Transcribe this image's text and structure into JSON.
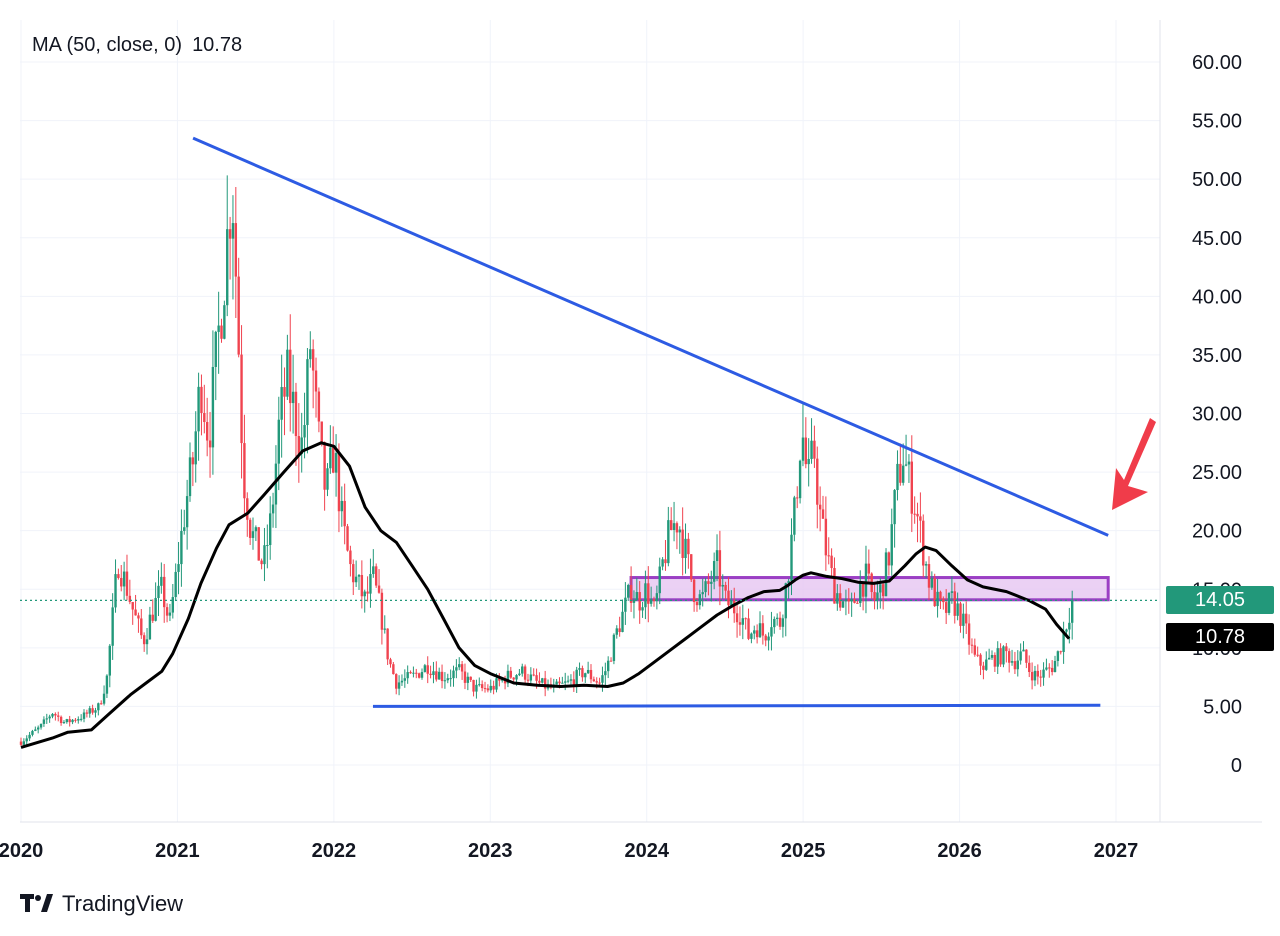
{
  "indicator": {
    "name": "MA (50, close, 0)",
    "value": "10.78"
  },
  "brand": {
    "name": "TradingView",
    "logo_icon": "tradingview-logo-icon"
  },
  "price_labels": {
    "last_close": {
      "text": "14.05",
      "value": 14.05,
      "color": "#22987a"
    },
    "ma_value": {
      "text": "10.78",
      "value": 10.78,
      "color": "#000000"
    }
  },
  "chart_data": {
    "type": "candlestick",
    "y_axis": {
      "position": "right",
      "range": [
        -4.5,
        64
      ],
      "ticks": [
        {
          "value": 60,
          "label": "60.00"
        },
        {
          "value": 55,
          "label": "55.00"
        },
        {
          "value": 50,
          "label": "50.00"
        },
        {
          "value": 45,
          "label": "45.00"
        },
        {
          "value": 40,
          "label": "40.00"
        },
        {
          "value": 35,
          "label": "35.00"
        },
        {
          "value": 30,
          "label": "30.00"
        },
        {
          "value": 25,
          "label": "25.00"
        },
        {
          "value": 20,
          "label": "20.00"
        },
        {
          "value": 15,
          "label": "15.00"
        },
        {
          "value": 10,
          "label": "10.00"
        },
        {
          "value": 5,
          "label": "5.00"
        },
        {
          "value": 0,
          "label": "0"
        }
      ]
    },
    "x_axis": {
      "range": [
        2020.0,
        2027.3
      ],
      "ticks": [
        {
          "value": 2020,
          "label": "2020"
        },
        {
          "value": 2021,
          "label": "2021"
        },
        {
          "value": 2022,
          "label": "2022"
        },
        {
          "value": 2023,
          "label": "2023"
        },
        {
          "value": 2024,
          "label": "2024"
        },
        {
          "value": 2025,
          "label": "2025"
        },
        {
          "value": 2026,
          "label": "2026"
        },
        {
          "value": 2027,
          "label": "2027"
        }
      ]
    },
    "grid": true,
    "colors": {
      "up": "#22987a",
      "down": "#f0434f",
      "ma": "#000000",
      "trendline": "#2d5be3",
      "zone": "#9b3fc4",
      "arrow": "#f03c4a"
    },
    "price_path": [
      [
        2020.0,
        2.0
      ],
      [
        2020.12,
        3.2
      ],
      [
        2020.2,
        4.5
      ],
      [
        2020.28,
        3.6
      ],
      [
        2020.4,
        4.2
      ],
      [
        2020.5,
        5.0
      ],
      [
        2020.55,
        7.5
      ],
      [
        2020.62,
        17.5
      ],
      [
        2020.68,
        15.0
      ],
      [
        2020.72,
        13.0
      ],
      [
        2020.78,
        10.5
      ],
      [
        2020.85,
        13.5
      ],
      [
        2020.9,
        15.0
      ],
      [
        2020.95,
        12.0
      ],
      [
        2021.0,
        17.0
      ],
      [
        2021.05,
        22.0
      ],
      [
        2021.1,
        26.0
      ],
      [
        2021.15,
        33.0
      ],
      [
        2021.2,
        28.0
      ],
      [
        2021.25,
        35.0
      ],
      [
        2021.3,
        42.0
      ],
      [
        2021.35,
        50.0
      ],
      [
        2021.38,
        40.0
      ],
      [
        2021.42,
        25.0
      ],
      [
        2021.47,
        20.0
      ],
      [
        2021.52,
        18.0
      ],
      [
        2021.55,
        17.0
      ],
      [
        2021.6,
        21.0
      ],
      [
        2021.65,
        29.0
      ],
      [
        2021.7,
        33.0
      ],
      [
        2021.75,
        30.0
      ],
      [
        2021.8,
        27.0
      ],
      [
        2021.85,
        36.0
      ],
      [
        2021.9,
        28.0
      ],
      [
        2021.95,
        23.0
      ],
      [
        2022.0,
        27.0
      ],
      [
        2022.05,
        21.0
      ],
      [
        2022.1,
        17.0
      ],
      [
        2022.15,
        15.5
      ],
      [
        2022.2,
        14.0
      ],
      [
        2022.25,
        16.0
      ],
      [
        2022.3,
        13.0
      ],
      [
        2022.35,
        9.0
      ],
      [
        2022.4,
        7.0
      ],
      [
        2022.5,
        7.5
      ],
      [
        2022.6,
        8.5
      ],
      [
        2022.7,
        7.5
      ],
      [
        2022.8,
        8.0
      ],
      [
        2022.9,
        6.5
      ],
      [
        2023.0,
        6.5
      ],
      [
        2023.1,
        7.5
      ],
      [
        2023.2,
        8.0
      ],
      [
        2023.3,
        7.0
      ],
      [
        2023.4,
        6.5
      ],
      [
        2023.5,
        7.0
      ],
      [
        2023.55,
        7.5
      ],
      [
        2023.6,
        8.0
      ],
      [
        2023.7,
        7.0
      ],
      [
        2023.75,
        8.5
      ],
      [
        2023.8,
        11.0
      ],
      [
        2023.85,
        13.0
      ],
      [
        2023.9,
        15.0
      ],
      [
        2023.95,
        14.0
      ],
      [
        2024.0,
        15.0
      ],
      [
        2024.05,
        13.0
      ],
      [
        2024.1,
        17.0
      ],
      [
        2024.15,
        20.0
      ],
      [
        2024.2,
        21.0
      ],
      [
        2024.25,
        18.0
      ],
      [
        2024.3,
        15.0
      ],
      [
        2024.35,
        14.0
      ],
      [
        2024.4,
        15.5
      ],
      [
        2024.45,
        17.0
      ],
      [
        2024.5,
        14.0
      ],
      [
        2024.55,
        13.5
      ],
      [
        2024.6,
        13.0
      ],
      [
        2024.65,
        11.0
      ],
      [
        2024.7,
        12.0
      ],
      [
        2024.75,
        11.0
      ],
      [
        2024.8,
        12.5
      ],
      [
        2024.85,
        12.0
      ],
      [
        2024.9,
        16.0
      ],
      [
        2024.95,
        22.0
      ],
      [
        2024.99,
        29.0
      ],
      [
        2025.03,
        24.0
      ],
      [
        2025.07,
        27.0
      ],
      [
        2025.1,
        22.0
      ],
      [
        2025.15,
        18.0
      ],
      [
        2025.2,
        15.0
      ],
      [
        2025.25,
        14.0
      ],
      [
        2025.3,
        13.0
      ],
      [
        2025.35,
        15.0
      ],
      [
        2025.4,
        16.0
      ],
      [
        2025.45,
        14.0
      ],
      [
        2025.5,
        15.0
      ],
      [
        2025.55,
        18.0
      ],
      [
        2025.6,
        24.0
      ],
      [
        2025.64,
        26.5
      ],
      [
        2025.68,
        24.0
      ],
      [
        2025.72,
        22.0
      ],
      [
        2025.76,
        19.0
      ],
      [
        2025.8,
        16.0
      ],
      [
        2025.85,
        14.0
      ],
      [
        2025.9,
        13.0
      ],
      [
        2025.95,
        14.0
      ],
      [
        2026.0,
        13.0
      ],
      [
        2026.05,
        11.0
      ],
      [
        2026.1,
        9.0
      ],
      [
        2026.15,
        8.5
      ],
      [
        2026.2,
        9.0
      ],
      [
        2026.3,
        9.5
      ],
      [
        2026.35,
        8.8
      ],
      [
        2026.4,
        9.5
      ],
      [
        2026.45,
        8.0
      ],
      [
        2026.5,
        7.5
      ],
      [
        2026.55,
        8.0
      ],
      [
        2026.6,
        8.5
      ],
      [
        2026.63,
        9.5
      ],
      [
        2026.66,
        11.0
      ],
      [
        2026.69,
        12.5
      ],
      [
        2026.72,
        14.05
      ]
    ],
    "moving_average": [
      [
        2020.0,
        1.5
      ],
      [
        2020.2,
        2.3
      ],
      [
        2020.3,
        2.8
      ],
      [
        2020.45,
        3.0
      ],
      [
        2020.55,
        4.2
      ],
      [
        2020.7,
        6.0
      ],
      [
        2020.8,
        7.0
      ],
      [
        2020.9,
        8.0
      ],
      [
        2020.97,
        9.5
      ],
      [
        2021.07,
        12.5
      ],
      [
        2021.15,
        15.5
      ],
      [
        2021.25,
        18.5
      ],
      [
        2021.33,
        20.5
      ],
      [
        2021.45,
        21.5
      ],
      [
        2021.55,
        23.0
      ],
      [
        2021.68,
        25.0
      ],
      [
        2021.8,
        26.8
      ],
      [
        2021.92,
        27.5
      ],
      [
        2022.0,
        27.2
      ],
      [
        2022.1,
        25.5
      ],
      [
        2022.2,
        22.0
      ],
      [
        2022.3,
        20.0
      ],
      [
        2022.4,
        19.0
      ],
      [
        2022.5,
        17.0
      ],
      [
        2022.6,
        15.0
      ],
      [
        2022.7,
        12.5
      ],
      [
        2022.8,
        10.0
      ],
      [
        2022.9,
        8.5
      ],
      [
        2023.0,
        7.8
      ],
      [
        2023.15,
        7.0
      ],
      [
        2023.3,
        6.8
      ],
      [
        2023.45,
        6.7
      ],
      [
        2023.6,
        6.8
      ],
      [
        2023.75,
        6.7
      ],
      [
        2023.85,
        7.0
      ],
      [
        2023.95,
        7.8
      ],
      [
        2024.05,
        8.8
      ],
      [
        2024.15,
        9.8
      ],
      [
        2024.25,
        10.8
      ],
      [
        2024.35,
        11.8
      ],
      [
        2024.45,
        12.8
      ],
      [
        2024.55,
        13.6
      ],
      [
        2024.65,
        14.3
      ],
      [
        2024.75,
        14.8
      ],
      [
        2024.85,
        14.9
      ],
      [
        2024.9,
        15.3
      ],
      [
        2024.95,
        15.8
      ],
      [
        2025.0,
        16.2
      ],
      [
        2025.05,
        16.4
      ],
      [
        2025.15,
        16.1
      ],
      [
        2025.25,
        15.9
      ],
      [
        2025.35,
        15.6
      ],
      [
        2025.45,
        15.5
      ],
      [
        2025.55,
        15.7
      ],
      [
        2025.65,
        17.0
      ],
      [
        2025.72,
        18.0
      ],
      [
        2025.78,
        18.6
      ],
      [
        2025.85,
        18.3
      ],
      [
        2025.95,
        17.0
      ],
      [
        2026.05,
        15.8
      ],
      [
        2026.15,
        15.2
      ],
      [
        2026.3,
        14.8
      ],
      [
        2026.45,
        14.0
      ],
      [
        2026.55,
        13.3
      ],
      [
        2026.62,
        12.0
      ],
      [
        2026.7,
        10.78
      ]
    ],
    "annotations": {
      "descending_trendline": {
        "from": [
          2021.1,
          53.5
        ],
        "to": [
          2026.95,
          19.6
        ]
      },
      "support_line": {
        "from": [
          2022.25,
          5.0
        ],
        "to": [
          2026.9,
          5.1
        ]
      },
      "resistance_zone": {
        "x": [
          2023.9,
          2026.95
        ],
        "y": [
          14.1,
          16.0
        ]
      },
      "last_price_line": {
        "value": 14.05
      }
    }
  }
}
